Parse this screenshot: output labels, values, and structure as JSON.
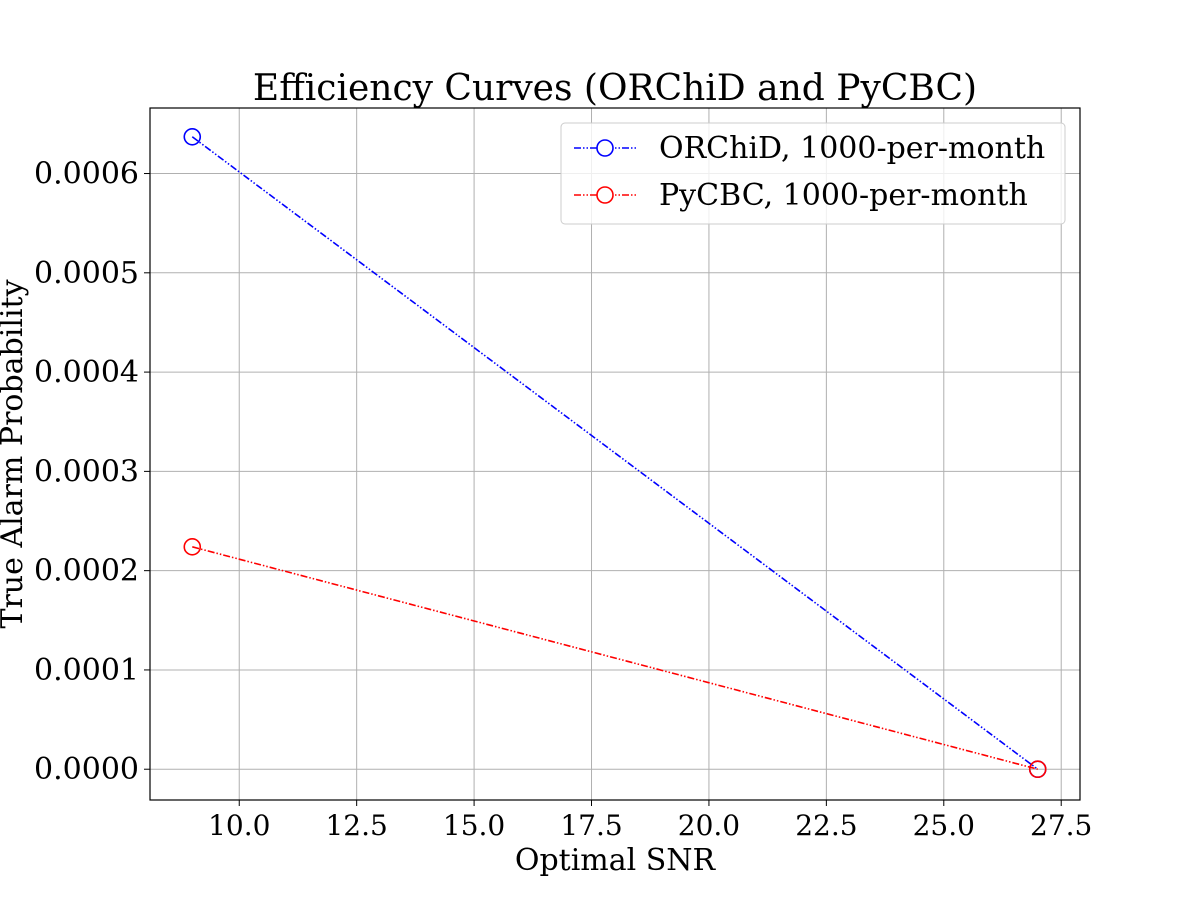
{
  "chart_data": {
    "type": "line",
    "title": "Efficiency Curves (ORChiD and PyCBC)",
    "xlabel": "Optimal SNR",
    "ylabel": "True Alarm Probability",
    "xlim": [
      8.1,
      27.9
    ],
    "ylim": [
      -3.1e-05,
      0.000666
    ],
    "x_ticks": [
      10.0,
      12.5,
      15.0,
      17.5,
      20.0,
      22.5,
      25.0,
      27.5
    ],
    "x_tick_labels": [
      "10.0",
      "12.5",
      "15.0",
      "17.5",
      "20.0",
      "22.5",
      "25.0",
      "27.5"
    ],
    "y_ticks": [
      0.0,
      0.0001,
      0.0002,
      0.0003,
      0.0004,
      0.0005,
      0.0006
    ],
    "y_tick_labels": [
      "0.0000",
      "0.0001",
      "0.0002",
      "0.0003",
      "0.0004",
      "0.0005",
      "0.0006"
    ],
    "grid": true,
    "legend_position": "upper right",
    "series": [
      {
        "name": "ORChiD, 1000-per-month",
        "color": "#0000ff",
        "marker": "open-circle",
        "line_style": "dash-dot-dot",
        "x": [
          9.0,
          27.0
        ],
        "y": [
          0.000637,
          0.0
        ]
      },
      {
        "name": "PyCBC, 1000-per-month",
        "color": "#ff0000",
        "marker": "open-circle",
        "line_style": "dash-dot-dot",
        "x": [
          9.0,
          27.0
        ],
        "y": [
          0.000224,
          0.0
        ]
      }
    ]
  }
}
